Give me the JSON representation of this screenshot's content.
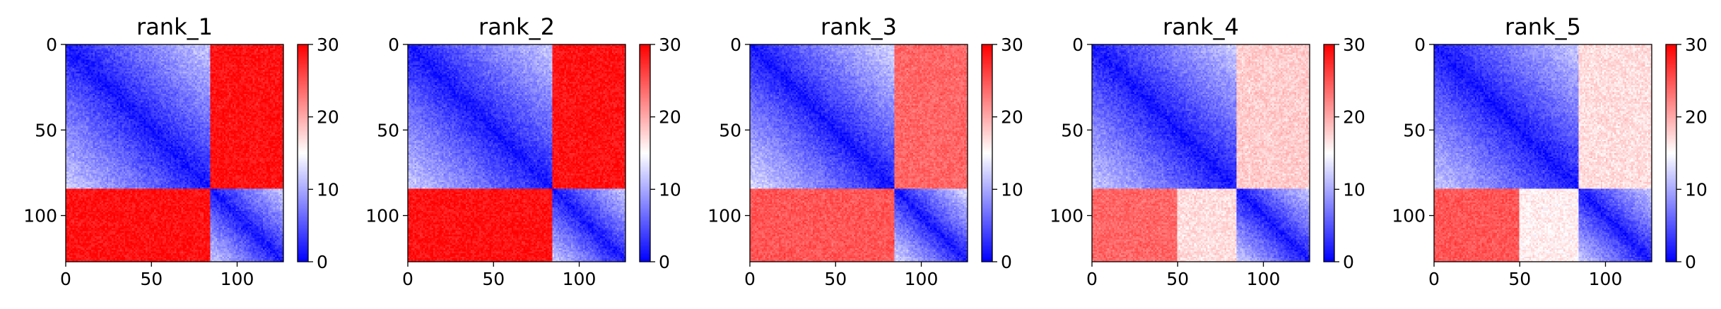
{
  "chart_data": [
    {
      "type": "heatmap",
      "title": "rank_1",
      "xlim": [
        0,
        127
      ],
      "ylim": [
        0,
        127
      ],
      "y_inverted": true,
      "xticks": [
        "0",
        "50",
        "100"
      ],
      "xtick_values": [
        0,
        50,
        100
      ],
      "yticks": [
        "0",
        "50",
        "100"
      ],
      "ytick_values": [
        0,
        50,
        100
      ],
      "colorbar": {
        "ticks": [
          "0",
          "10",
          "20",
          "30"
        ],
        "tick_values": [
          0,
          10,
          20,
          30
        ],
        "range": [
          0,
          30
        ],
        "colormap": "bwr"
      },
      "matrix_model": {
        "boundary_index": 85,
        "inter_block_value": 29,
        "inter_block_lower_left_value": 29,
        "intra_block_value_at_diagonal": 1,
        "intra_block_value_at_edge": 12
      }
    },
    {
      "type": "heatmap",
      "title": "rank_2",
      "xlim": [
        0,
        127
      ],
      "ylim": [
        0,
        127
      ],
      "y_inverted": true,
      "xticks": [
        "0",
        "50",
        "100"
      ],
      "xtick_values": [
        0,
        50,
        100
      ],
      "yticks": [
        "0",
        "50",
        "100"
      ],
      "ytick_values": [
        0,
        50,
        100
      ],
      "colorbar": {
        "ticks": [
          "0",
          "10",
          "20",
          "30"
        ],
        "tick_values": [
          0,
          10,
          20,
          30
        ],
        "range": [
          0,
          30
        ],
        "colormap": "bwr"
      },
      "matrix_model": {
        "boundary_index": 85,
        "inter_block_value": 29,
        "inter_block_lower_left_value": 29,
        "intra_block_value_at_diagonal": 1,
        "intra_block_value_at_edge": 12
      }
    },
    {
      "type": "heatmap",
      "title": "rank_3",
      "xlim": [
        0,
        127
      ],
      "ylim": [
        0,
        127
      ],
      "y_inverted": true,
      "xticks": [
        "0",
        "50",
        "100"
      ],
      "xtick_values": [
        0,
        50,
        100
      ],
      "yticks": [
        "0",
        "50",
        "100"
      ],
      "ytick_values": [
        0,
        50,
        100
      ],
      "colorbar": {
        "ticks": [
          "0",
          "10",
          "20",
          "30"
        ],
        "tick_values": [
          0,
          10,
          20,
          30
        ],
        "range": [
          0,
          30
        ],
        "colormap": "bwr"
      },
      "matrix_model": {
        "boundary_index": 85,
        "inter_block_value": 24,
        "inter_block_lower_left_value": 25,
        "intra_block_value_at_diagonal": 1,
        "intra_block_value_at_edge": 13
      }
    },
    {
      "type": "heatmap",
      "title": "rank_4",
      "xlim": [
        0,
        127
      ],
      "ylim": [
        0,
        127
      ],
      "y_inverted": true,
      "xticks": [
        "0",
        "50",
        "100"
      ],
      "xtick_values": [
        0,
        50,
        100
      ],
      "yticks": [
        "0",
        "50",
        "100"
      ],
      "ytick_values": [
        0,
        50,
        100
      ],
      "colorbar": {
        "ticks": [
          "0",
          "10",
          "20",
          "30"
        ],
        "tick_values": [
          0,
          10,
          20,
          30
        ],
        "range": [
          0,
          30
        ],
        "colormap": "bwr"
      },
      "matrix_model": {
        "boundary_index": 85,
        "inter_block_value": 18,
        "inter_block_lower_left_value": 17,
        "lower_left_red_until_index": 50,
        "lower_left_red_value": 24,
        "intra_block_value_at_diagonal": 1,
        "intra_block_value_at_edge": 12
      }
    },
    {
      "type": "heatmap",
      "title": "rank_5",
      "xlim": [
        0,
        127
      ],
      "ylim": [
        0,
        127
      ],
      "y_inverted": true,
      "xticks": [
        "0",
        "50",
        "100"
      ],
      "xtick_values": [
        0,
        50,
        100
      ],
      "yticks": [
        "0",
        "50",
        "100"
      ],
      "ytick_values": [
        0,
        50,
        100
      ],
      "colorbar": {
        "ticks": [
          "0",
          "10",
          "20",
          "30"
        ],
        "tick_values": [
          0,
          10,
          20,
          30
        ],
        "range": [
          0,
          30
        ],
        "colormap": "bwr"
      },
      "matrix_model": {
        "boundary_index": 85,
        "inter_block_value": 17,
        "inter_block_lower_left_value": 16,
        "lower_left_red_until_index": 50,
        "lower_left_red_value": 25,
        "intra_block_value_at_diagonal": 1,
        "intra_block_value_at_edge": 12
      }
    }
  ],
  "colors": {
    "low": "#0000ff",
    "mid": "#ffffff",
    "high": "#ff0000",
    "axis": "#000000"
  }
}
